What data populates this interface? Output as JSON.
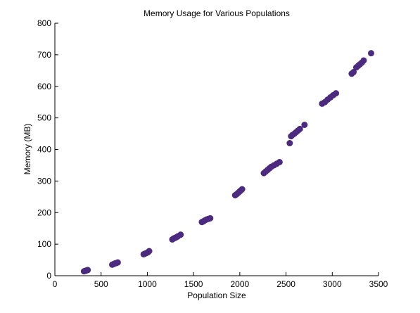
{
  "chart_data": {
    "type": "scatter",
    "title": "Memory Usage for Various Populations",
    "xlabel": "Population Size",
    "ylabel": "Memory (MB)",
    "xlim": [
      0,
      3500
    ],
    "ylim": [
      0,
      800
    ],
    "xticks": [
      "0",
      "500",
      "1000",
      "1500",
      "2000",
      "2500",
      "3000",
      "3500"
    ],
    "yticks": [
      "0",
      "100",
      "200",
      "300",
      "400",
      "500",
      "600",
      "700",
      "800"
    ],
    "grid": false,
    "legend": "none",
    "marker_color": "#4b2a7f",
    "series": [
      {
        "x": [
          315,
          325,
          335,
          345,
          355,
          620,
          635,
          650,
          665,
          680,
          960,
          975,
          990,
          1005,
          1020,
          1270,
          1285,
          1300,
          1315,
          1330,
          1360,
          1590,
          1605,
          1620,
          1640,
          1660,
          1680,
          1950,
          1965,
          1980,
          1995,
          2010,
          2025,
          2260,
          2280,
          2300,
          2320,
          2340,
          2370,
          2400,
          2430,
          2540,
          2555,
          2570,
          2590,
          2610,
          2630,
          2650,
          2700,
          2890,
          2920,
          2950,
          2980,
          3010,
          3040,
          3210,
          3230,
          3260,
          3280,
          3300,
          3320,
          3340,
          3420
        ],
        "y": [
          14,
          15,
          16,
          17,
          18,
          35,
          37,
          39,
          40,
          42,
          68,
          70,
          72,
          74,
          78,
          115,
          118,
          120,
          122,
          125,
          130,
          170,
          172,
          175,
          178,
          180,
          182,
          255,
          258,
          262,
          266,
          270,
          274,
          325,
          330,
          335,
          340,
          345,
          350,
          355,
          360,
          420,
          442,
          446,
          450,
          455,
          460,
          465,
          478,
          545,
          550,
          558,
          565,
          572,
          578,
          640,
          645,
          660,
          665,
          670,
          675,
          682,
          705
        ]
      }
    ]
  }
}
